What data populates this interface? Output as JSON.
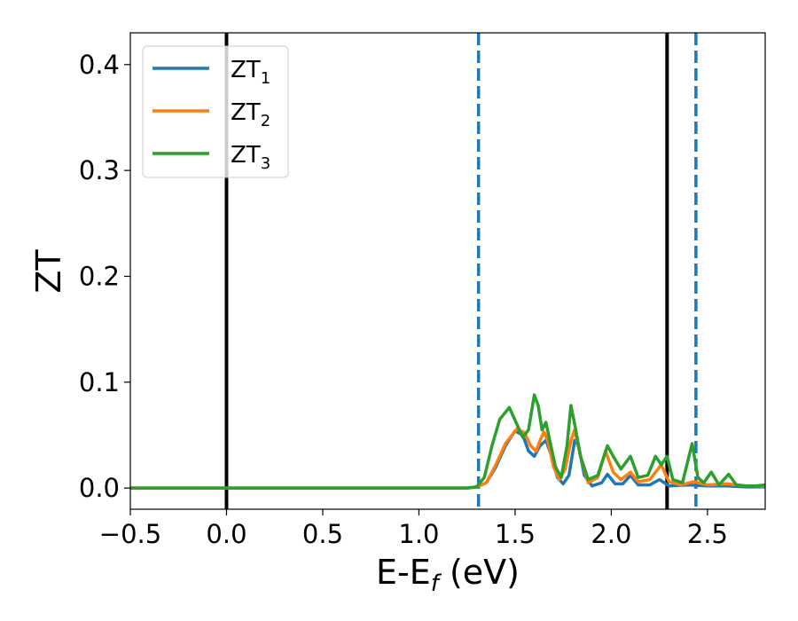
{
  "chart_data": {
    "type": "line",
    "xlabel_main": "E-E",
    "xlabel_sub": "f",
    "xlabel_unit": " (eV)",
    "ylabel": "ZT",
    "xlim": [
      -0.5,
      2.8
    ],
    "ylim": [
      -0.02,
      0.43
    ],
    "xticks": [
      -0.5,
      0.0,
      0.5,
      1.0,
      1.5,
      2.0,
      2.5
    ],
    "xtick_labels": [
      "−0.5",
      "0.0",
      "0.5",
      "1.0",
      "1.5",
      "2.0",
      "2.5"
    ],
    "yticks": [
      0.0,
      0.1,
      0.2,
      0.3,
      0.4
    ],
    "ytick_labels": [
      "0.0",
      "0.1",
      "0.2",
      "0.3",
      "0.4"
    ],
    "grid": false,
    "legend_position": "top-left",
    "vertical_lines": [
      {
        "x": 0.0,
        "style": "solid",
        "color": "#000000"
      },
      {
        "x": 2.29,
        "style": "solid",
        "color": "#000000"
      },
      {
        "x": 1.31,
        "style": "dashed",
        "color": "#1f77b4"
      },
      {
        "x": 2.44,
        "style": "dashed",
        "color": "#1f77b4"
      }
    ],
    "series": [
      {
        "name": "ZT",
        "subscript": "1",
        "color": "#1f77b4",
        "points": [
          [
            -0.5,
            0
          ],
          [
            1.25,
            0
          ],
          [
            1.3,
            0.001
          ],
          [
            1.35,
            0.005
          ],
          [
            1.4,
            0.02
          ],
          [
            1.45,
            0.04
          ],
          [
            1.5,
            0.054
          ],
          [
            1.54,
            0.05
          ],
          [
            1.57,
            0.035
          ],
          [
            1.6,
            0.03
          ],
          [
            1.63,
            0.04
          ],
          [
            1.66,
            0.045
          ],
          [
            1.69,
            0.03
          ],
          [
            1.72,
            0.01
          ],
          [
            1.75,
            0.004
          ],
          [
            1.78,
            0.012
          ],
          [
            1.81,
            0.045
          ],
          [
            1.83,
            0.04
          ],
          [
            1.86,
            0.012
          ],
          [
            1.9,
            0.002
          ],
          [
            1.95,
            0.005
          ],
          [
            1.98,
            0.013
          ],
          [
            2.02,
            0.004
          ],
          [
            2.06,
            0.004
          ],
          [
            2.1,
            0.012
          ],
          [
            2.14,
            0.003
          ],
          [
            2.2,
            0.003
          ],
          [
            2.25,
            0.008
          ],
          [
            2.3,
            0.002
          ],
          [
            2.4,
            0.003
          ],
          [
            2.5,
            0.002
          ],
          [
            2.6,
            0.002
          ],
          [
            2.7,
            0.001
          ],
          [
            2.8,
            0.001
          ]
        ]
      },
      {
        "name": "ZT",
        "subscript": "2",
        "color": "#ff7f0e",
        "points": [
          [
            -0.5,
            0
          ],
          [
            1.25,
            0
          ],
          [
            1.3,
            0.001
          ],
          [
            1.35,
            0.005
          ],
          [
            1.4,
            0.022
          ],
          [
            1.45,
            0.042
          ],
          [
            1.51,
            0.056
          ],
          [
            1.55,
            0.052
          ],
          [
            1.58,
            0.04
          ],
          [
            1.61,
            0.035
          ],
          [
            1.63,
            0.045
          ],
          [
            1.65,
            0.053
          ],
          [
            1.67,
            0.045
          ],
          [
            1.7,
            0.02
          ],
          [
            1.73,
            0.008
          ],
          [
            1.76,
            0.018
          ],
          [
            1.79,
            0.045
          ],
          [
            1.81,
            0.055
          ],
          [
            1.84,
            0.03
          ],
          [
            1.88,
            0.005
          ],
          [
            1.93,
            0.01
          ],
          [
            1.97,
            0.035
          ],
          [
            2.01,
            0.015
          ],
          [
            2.05,
            0.008
          ],
          [
            2.1,
            0.015
          ],
          [
            2.14,
            0.006
          ],
          [
            2.2,
            0.008
          ],
          [
            2.26,
            0.022
          ],
          [
            2.3,
            0.006
          ],
          [
            2.36,
            0.003
          ],
          [
            2.43,
            0.006
          ],
          [
            2.5,
            0.003
          ],
          [
            2.6,
            0.004
          ],
          [
            2.7,
            0.002
          ],
          [
            2.8,
            0.002
          ]
        ]
      },
      {
        "name": "ZT",
        "subscript": "3",
        "color": "#2ca02c",
        "points": [
          [
            -0.5,
            0
          ],
          [
            1.25,
            0
          ],
          [
            1.3,
            0.001
          ],
          [
            1.34,
            0.01
          ],
          [
            1.38,
            0.04
          ],
          [
            1.42,
            0.065
          ],
          [
            1.47,
            0.076
          ],
          [
            1.51,
            0.06
          ],
          [
            1.54,
            0.048
          ],
          [
            1.57,
            0.055
          ],
          [
            1.6,
            0.088
          ],
          [
            1.62,
            0.078
          ],
          [
            1.64,
            0.055
          ],
          [
            1.66,
            0.062
          ],
          [
            1.68,
            0.045
          ],
          [
            1.71,
            0.02
          ],
          [
            1.74,
            0.01
          ],
          [
            1.77,
            0.04
          ],
          [
            1.79,
            0.078
          ],
          [
            1.81,
            0.06
          ],
          [
            1.84,
            0.03
          ],
          [
            1.88,
            0.008
          ],
          [
            1.93,
            0.012
          ],
          [
            1.98,
            0.04
          ],
          [
            2.01,
            0.03
          ],
          [
            2.05,
            0.018
          ],
          [
            2.1,
            0.03
          ],
          [
            2.14,
            0.01
          ],
          [
            2.19,
            0.012
          ],
          [
            2.23,
            0.03
          ],
          [
            2.26,
            0.022
          ],
          [
            2.29,
            0.03
          ],
          [
            2.32,
            0.008
          ],
          [
            2.37,
            0.005
          ],
          [
            2.42,
            0.042
          ],
          [
            2.45,
            0.01
          ],
          [
            2.48,
            0.005
          ],
          [
            2.52,
            0.015
          ],
          [
            2.56,
            0.003
          ],
          [
            2.61,
            0.013
          ],
          [
            2.65,
            0.003
          ],
          [
            2.7,
            0.002
          ],
          [
            2.75,
            0.002
          ],
          [
            2.8,
            0.003
          ]
        ]
      }
    ]
  }
}
